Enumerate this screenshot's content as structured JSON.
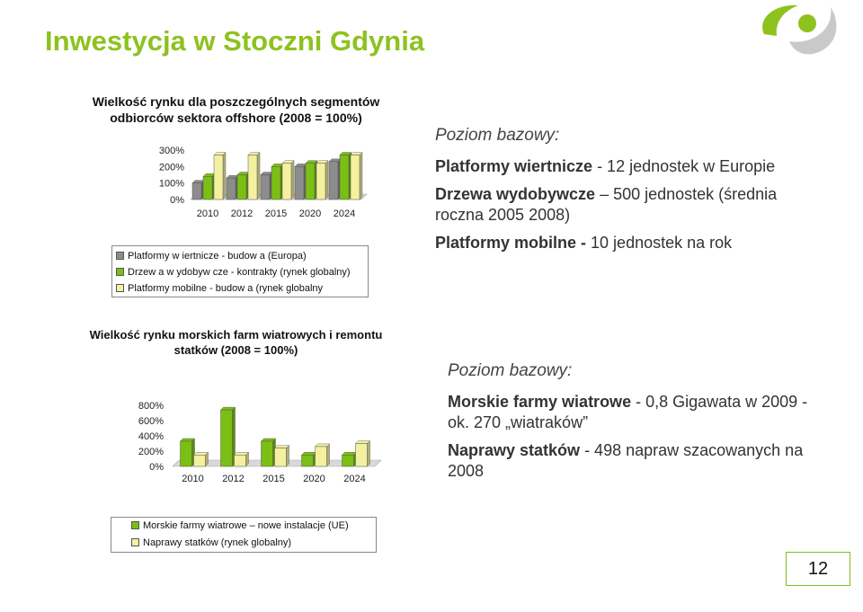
{
  "slide": {
    "title": "Inwestycja w Stoczni Gdynia",
    "page_number": "12",
    "colors": {
      "accent": "#8dc21f",
      "gray": "#8c8c8c",
      "green": "#7cbf14",
      "cream": "#f3f0a0"
    }
  },
  "chart_data": [
    {
      "type": "bar",
      "title": "Wielkość rynku dla poszczególnych segmentów odbiorców sektora offshore (2008 = 100%)",
      "categories": [
        "2010",
        "2012",
        "2015",
        "2020",
        "2024"
      ],
      "y_ticks": [
        "300%",
        "200%",
        "100%",
        "0%"
      ],
      "ylim": [
        0,
        300
      ],
      "series": [
        {
          "name": "Platformy w iertnicze - budow a (Europa)",
          "color": "#8c8c8c",
          "values": [
            100,
            130,
            150,
            200,
            230
          ]
        },
        {
          "name": "Drzew a w ydobyw cze - kontrakty (rynek globalny)",
          "color": "#7cbf14",
          "values": [
            140,
            150,
            200,
            220,
            270
          ]
        },
        {
          "name": "Platformy mobilne - budow a (rynek globalny",
          "color": "#f3f0a0",
          "values": [
            270,
            270,
            220,
            220,
            270
          ]
        }
      ],
      "legend_position": "bottom"
    },
    {
      "type": "bar",
      "title": "Wielkość rynku morskich farm wiatrowych i remontu statków (2008 = 100%)",
      "categories": [
        "2010",
        "2012",
        "2015",
        "2020",
        "2024"
      ],
      "y_ticks": [
        "800%",
        "600%",
        "400%",
        "200%",
        "0%"
      ],
      "ylim": [
        0,
        800
      ],
      "series": [
        {
          "name": "Morskie farmy wiatrowe – nowe instalacje (UE)",
          "color": "#7cbf14",
          "values": [
            330,
            740,
            330,
            150,
            150
          ]
        },
        {
          "name": "Naprawy statków (rynek globalny)",
          "color": "#f3f0a0",
          "values": [
            150,
            150,
            240,
            260,
            300
          ]
        }
      ],
      "legend_position": "bottom"
    }
  ],
  "side1": {
    "heading": "Poziom bazowy:",
    "items": [
      {
        "bold": "Platformy wiertnicze",
        "rest": " - 12 jednostek w Europie"
      },
      {
        "bold": "Drzewa wydobywcze",
        "rest": " – 500 jednostek (średnia roczna 2005 2008)"
      },
      {
        "bold": "Platformy mobilne -",
        "rest": " 10 jednostek na rok"
      }
    ]
  },
  "side2": {
    "heading": "Poziom bazowy:",
    "items": [
      {
        "bold": "Morskie farmy wiatrowe",
        "rest": " - 0,8 Gigawata w 2009 - ok. 270 „wiatraków”"
      },
      {
        "bold": "Naprawy statków",
        "rest": " - 498 napraw szacowanych na 2008"
      }
    ]
  }
}
